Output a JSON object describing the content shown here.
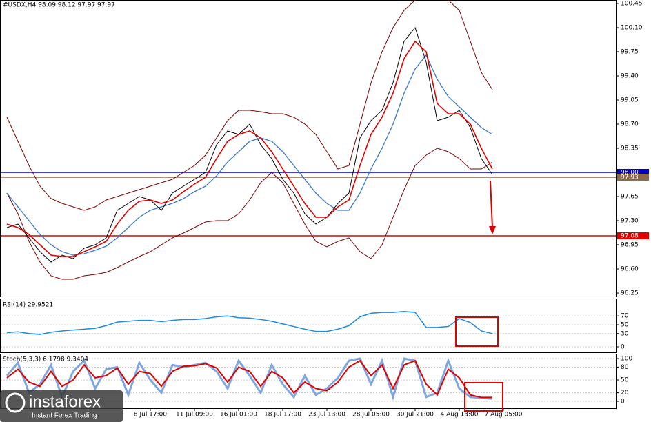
{
  "chart_data": [
    {
      "type": "line",
      "title": "#USDX,H4  98.09 98.12 97.97 97.97",
      "ylim": [
        96.2,
        100.5
      ],
      "yticks": [
        {
          "value": 100.45,
          "label": "100.45"
        },
        {
          "value": 100.1,
          "label": "100.10"
        },
        {
          "value": 99.75,
          "label": "99.75"
        },
        {
          "value": 99.4,
          "label": "99.40"
        },
        {
          "value": 99.05,
          "label": "99.05"
        },
        {
          "value": 98.7,
          "label": "98.70"
        },
        {
          "value": 98.35,
          "label": "98.35"
        },
        {
          "value": 97.65,
          "label": "97.65"
        },
        {
          "value": 97.3,
          "label": "97.30"
        },
        {
          "value": 96.95,
          "label": "96.95"
        },
        {
          "value": 96.6,
          "label": "96.60"
        },
        {
          "value": 96.25,
          "label": "96.25"
        }
      ],
      "levels": [
        {
          "value": 98.0,
          "label": "98.00",
          "color": "#0000c8"
        },
        {
          "value": 97.93,
          "label": "97.93",
          "color": "#8b6a4a"
        },
        {
          "value": 97.08,
          "label": "97.08",
          "color": "#e00000"
        }
      ],
      "series": [
        {
          "color": "#7a0000",
          "values": [
            98.8,
            98.45,
            98.1,
            97.8,
            97.62,
            97.55,
            97.5,
            97.45,
            97.5,
            97.6,
            97.65,
            97.7,
            97.75,
            97.8,
            97.85,
            97.9,
            98.0,
            98.1,
            98.25,
            98.5,
            98.75,
            98.9,
            98.9,
            98.88,
            98.85,
            98.85,
            98.8,
            98.7,
            98.55,
            98.3,
            98.05,
            98.1,
            98.7,
            99.3,
            99.75,
            100.1,
            100.35,
            100.5,
            100.55,
            100.55,
            100.5,
            100.35,
            99.9,
            99.45,
            99.2,
            null
          ]
        },
        {
          "color": "#7a0000",
          "values": [
            97.7,
            97.4,
            97.0,
            96.7,
            96.5,
            96.45,
            96.45,
            96.5,
            96.52,
            96.55,
            96.62,
            96.7,
            96.78,
            96.85,
            96.95,
            97.05,
            97.12,
            97.2,
            97.28,
            97.3,
            97.3,
            97.4,
            97.6,
            97.85,
            98.0,
            97.85,
            97.55,
            97.25,
            97.0,
            96.92,
            97.0,
            97.05,
            96.85,
            96.75,
            96.95,
            97.35,
            97.75,
            98.1,
            98.25,
            98.35,
            98.3,
            98.2,
            98.05,
            98.05,
            98.15,
            null
          ]
        },
        {
          "color": "#3a78c8",
          "values": [
            97.7,
            97.5,
            97.3,
            97.1,
            96.95,
            96.85,
            96.8,
            96.82,
            96.87,
            96.93,
            97.05,
            97.2,
            97.35,
            97.45,
            97.5,
            97.55,
            97.62,
            97.72,
            97.8,
            97.95,
            98.15,
            98.3,
            98.45,
            98.5,
            98.45,
            98.3,
            98.1,
            97.9,
            97.7,
            97.55,
            97.45,
            97.45,
            97.7,
            98.05,
            98.35,
            98.7,
            99.15,
            99.5,
            99.7,
            99.35,
            99.1,
            98.95,
            98.8,
            98.65,
            98.55,
            null
          ]
        },
        {
          "color": "#000000",
          "values": [
            97.2,
            97.25,
            97.05,
            96.85,
            96.7,
            96.8,
            96.75,
            96.9,
            96.95,
            97.05,
            97.45,
            97.55,
            97.65,
            97.6,
            97.45,
            97.7,
            97.8,
            97.9,
            98.0,
            98.4,
            98.6,
            98.55,
            98.7,
            98.4,
            98.2,
            97.9,
            97.7,
            97.4,
            97.25,
            97.35,
            97.55,
            97.7,
            98.5,
            98.75,
            98.9,
            99.3,
            99.9,
            100.1,
            99.6,
            98.75,
            98.8,
            98.9,
            98.65,
            98.2,
            97.97,
            null
          ]
        },
        {
          "color": "#e00000",
          "values": [
            97.25,
            97.2,
            97.1,
            96.95,
            96.8,
            96.78,
            96.78,
            96.85,
            96.92,
            97.0,
            97.25,
            97.45,
            97.58,
            97.6,
            97.55,
            97.6,
            97.72,
            97.83,
            97.93,
            98.2,
            98.45,
            98.55,
            98.6,
            98.5,
            98.3,
            98.05,
            97.8,
            97.55,
            97.35,
            97.35,
            97.5,
            97.6,
            98.1,
            98.55,
            98.8,
            99.15,
            99.65,
            99.9,
            99.75,
            99.0,
            98.85,
            98.85,
            98.7,
            98.35,
            98.05,
            null
          ]
        }
      ]
    },
    {
      "type": "line",
      "title": "RSI(14) 29.9521",
      "ylim": [
        0,
        100
      ],
      "yticks": [
        70,
        50,
        30,
        0
      ],
      "series": [
        {
          "color": "#1e8ae0",
          "values": [
            32,
            34,
            30,
            28,
            33,
            36,
            38,
            40,
            42,
            48,
            56,
            58,
            60,
            60,
            57,
            60,
            62,
            62,
            64,
            68,
            70,
            66,
            65,
            62,
            58,
            52,
            46,
            40,
            35,
            35,
            40,
            48,
            68,
            76,
            78,
            78,
            80,
            78,
            44,
            44,
            46,
            64,
            55,
            36,
            30,
            null
          ]
        }
      ]
    },
    {
      "type": "line",
      "title": "Stoch(5,3,3) 6.1798 9.3404",
      "ylim": [
        0,
        100
      ],
      "yticks": [
        100,
        80,
        50,
        20,
        0
      ],
      "categories": [
        null,
        null,
        null,
        null,
        null,
        null,
        null,
        null,
        null,
        null,
        null,
        null,
        null,
        "8 Jul 17:00",
        null,
        null,
        null,
        "11 Jul 09:00",
        null,
        null,
        null,
        "16 Jul 01:00",
        null,
        null,
        null,
        "18 Jul 17:00",
        null,
        null,
        null,
        "23 Jul 13:00",
        null,
        null,
        null,
        "28 Jul 05:00",
        null,
        null,
        null,
        "30 Jul 21:00",
        null,
        null,
        null,
        "4 Aug 13:00",
        null,
        null,
        null,
        "7 Aug 05:00"
      ],
      "series": [
        {
          "color": "#7fa6e0",
          "values": [
            60,
            90,
            20,
            40,
            85,
            10,
            70,
            95,
            30,
            75,
            80,
            15,
            90,
            50,
            20,
            85,
            80,
            85,
            90,
            70,
            30,
            95,
            60,
            20,
            85,
            40,
            10,
            60,
            15,
            30,
            55,
            95,
            100,
            40,
            95,
            10,
            100,
            95,
            10,
            20,
            95,
            30,
            10,
            8,
            6,
            null
          ]
        },
        {
          "color": "#e00000",
          "values": [
            55,
            75,
            45,
            35,
            70,
            35,
            50,
            85,
            55,
            60,
            78,
            40,
            70,
            65,
            35,
            70,
            82,
            83,
            88,
            78,
            45,
            80,
            70,
            35,
            70,
            55,
            20,
            45,
            30,
            25,
            45,
            80,
            95,
            60,
            85,
            30,
            85,
            95,
            40,
            15,
            75,
            55,
            15,
            9,
            9,
            null
          ]
        }
      ]
    }
  ],
  "watermark": {
    "name": "instaforex",
    "slogan": "Instant Forex Trading"
  }
}
